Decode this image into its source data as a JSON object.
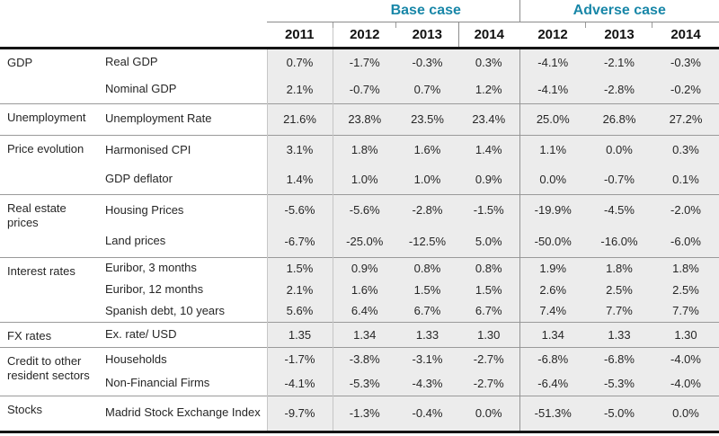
{
  "header": {
    "base_case_label": "Base case",
    "adverse_case_label": "Adverse case",
    "accent_color": "#1987A8",
    "years": [
      "2011",
      "2012",
      "2013",
      "2014",
      "2012",
      "2013",
      "2014"
    ]
  },
  "table": {
    "groups": [
      {
        "category": "GDP",
        "rows": [
          {
            "indicator": "Real GDP",
            "values": [
              "0.7%",
              "-1.7%",
              "-0.3%",
              "0.3%",
              "-4.1%",
              "-2.1%",
              "-0.3%"
            ]
          },
          {
            "indicator": "Nominal GDP",
            "values": [
              "2.1%",
              "-0.7%",
              "0.7%",
              "1.2%",
              "-4.1%",
              "-2.8%",
              "-0.2%"
            ]
          }
        ]
      },
      {
        "category": "Unemployment",
        "rows": [
          {
            "indicator": "Unemployment Rate",
            "values": [
              "21.6%",
              "23.8%",
              "23.5%",
              "23.4%",
              "25.0%",
              "26.8%",
              "27.2%"
            ]
          }
        ]
      },
      {
        "category": "Price evolution",
        "rows": [
          {
            "indicator": "Harmonised CPI",
            "values": [
              "3.1%",
              "1.8%",
              "1.6%",
              "1.4%",
              "1.1%",
              "0.0%",
              "0.3%"
            ]
          },
          {
            "indicator": "GDP deflator",
            "values": [
              "1.4%",
              "1.0%",
              "1.0%",
              "0.9%",
              "0.0%",
              "-0.7%",
              "0.1%"
            ]
          }
        ]
      },
      {
        "category": "Real estate prices",
        "rows": [
          {
            "indicator": "Housing Prices",
            "values": [
              "-5.6%",
              "-5.6%",
              "-2.8%",
              "-1.5%",
              "-19.9%",
              "-4.5%",
              "-2.0%"
            ]
          },
          {
            "indicator": "Land prices",
            "values": [
              "-6.7%",
              "-25.0%",
              "-12.5%",
              "5.0%",
              "-50.0%",
              "-16.0%",
              "-6.0%"
            ]
          }
        ]
      },
      {
        "category": "Interest rates",
        "rows": [
          {
            "indicator": "Euribor, 3 months",
            "values": [
              "1.5%",
              "0.9%",
              "0.8%",
              "0.8%",
              "1.9%",
              "1.8%",
              "1.8%"
            ]
          },
          {
            "indicator": "Euribor, 12 months",
            "values": [
              "2.1%",
              "1.6%",
              "1.5%",
              "1.5%",
              "2.6%",
              "2.5%",
              "2.5%"
            ]
          },
          {
            "indicator": "Spanish debt, 10 years",
            "values": [
              "5.6%",
              "6.4%",
              "6.7%",
              "6.7%",
              "7.4%",
              "7.7%",
              "7.7%"
            ]
          }
        ]
      },
      {
        "category": "FX rates",
        "rows": [
          {
            "indicator": "Ex. rate/ USD",
            "values": [
              "1.35",
              "1.34",
              "1.33",
              "1.30",
              "1.34",
              "1.33",
              "1.30"
            ]
          }
        ]
      },
      {
        "category": "Credit to other resident sectors",
        "rows": [
          {
            "indicator": "Households",
            "values": [
              "-1.7%",
              "-3.8%",
              "-3.1%",
              "-2.7%",
              "-6.8%",
              "-6.8%",
              "-4.0%"
            ]
          },
          {
            "indicator": "Non-Financial Firms",
            "values": [
              "-4.1%",
              "-5.3%",
              "-4.3%",
              "-2.7%",
              "-6.4%",
              "-5.3%",
              "-4.0%"
            ]
          }
        ]
      },
      {
        "category": "Stocks",
        "rows": [
          {
            "indicator": "Madrid Stock Exchange Index",
            "values": [
              "-9.7%",
              "-1.3%",
              "-0.4%",
              "0.0%",
              "-51.3%",
              "-5.0%",
              "0.0%"
            ]
          }
        ]
      }
    ]
  }
}
